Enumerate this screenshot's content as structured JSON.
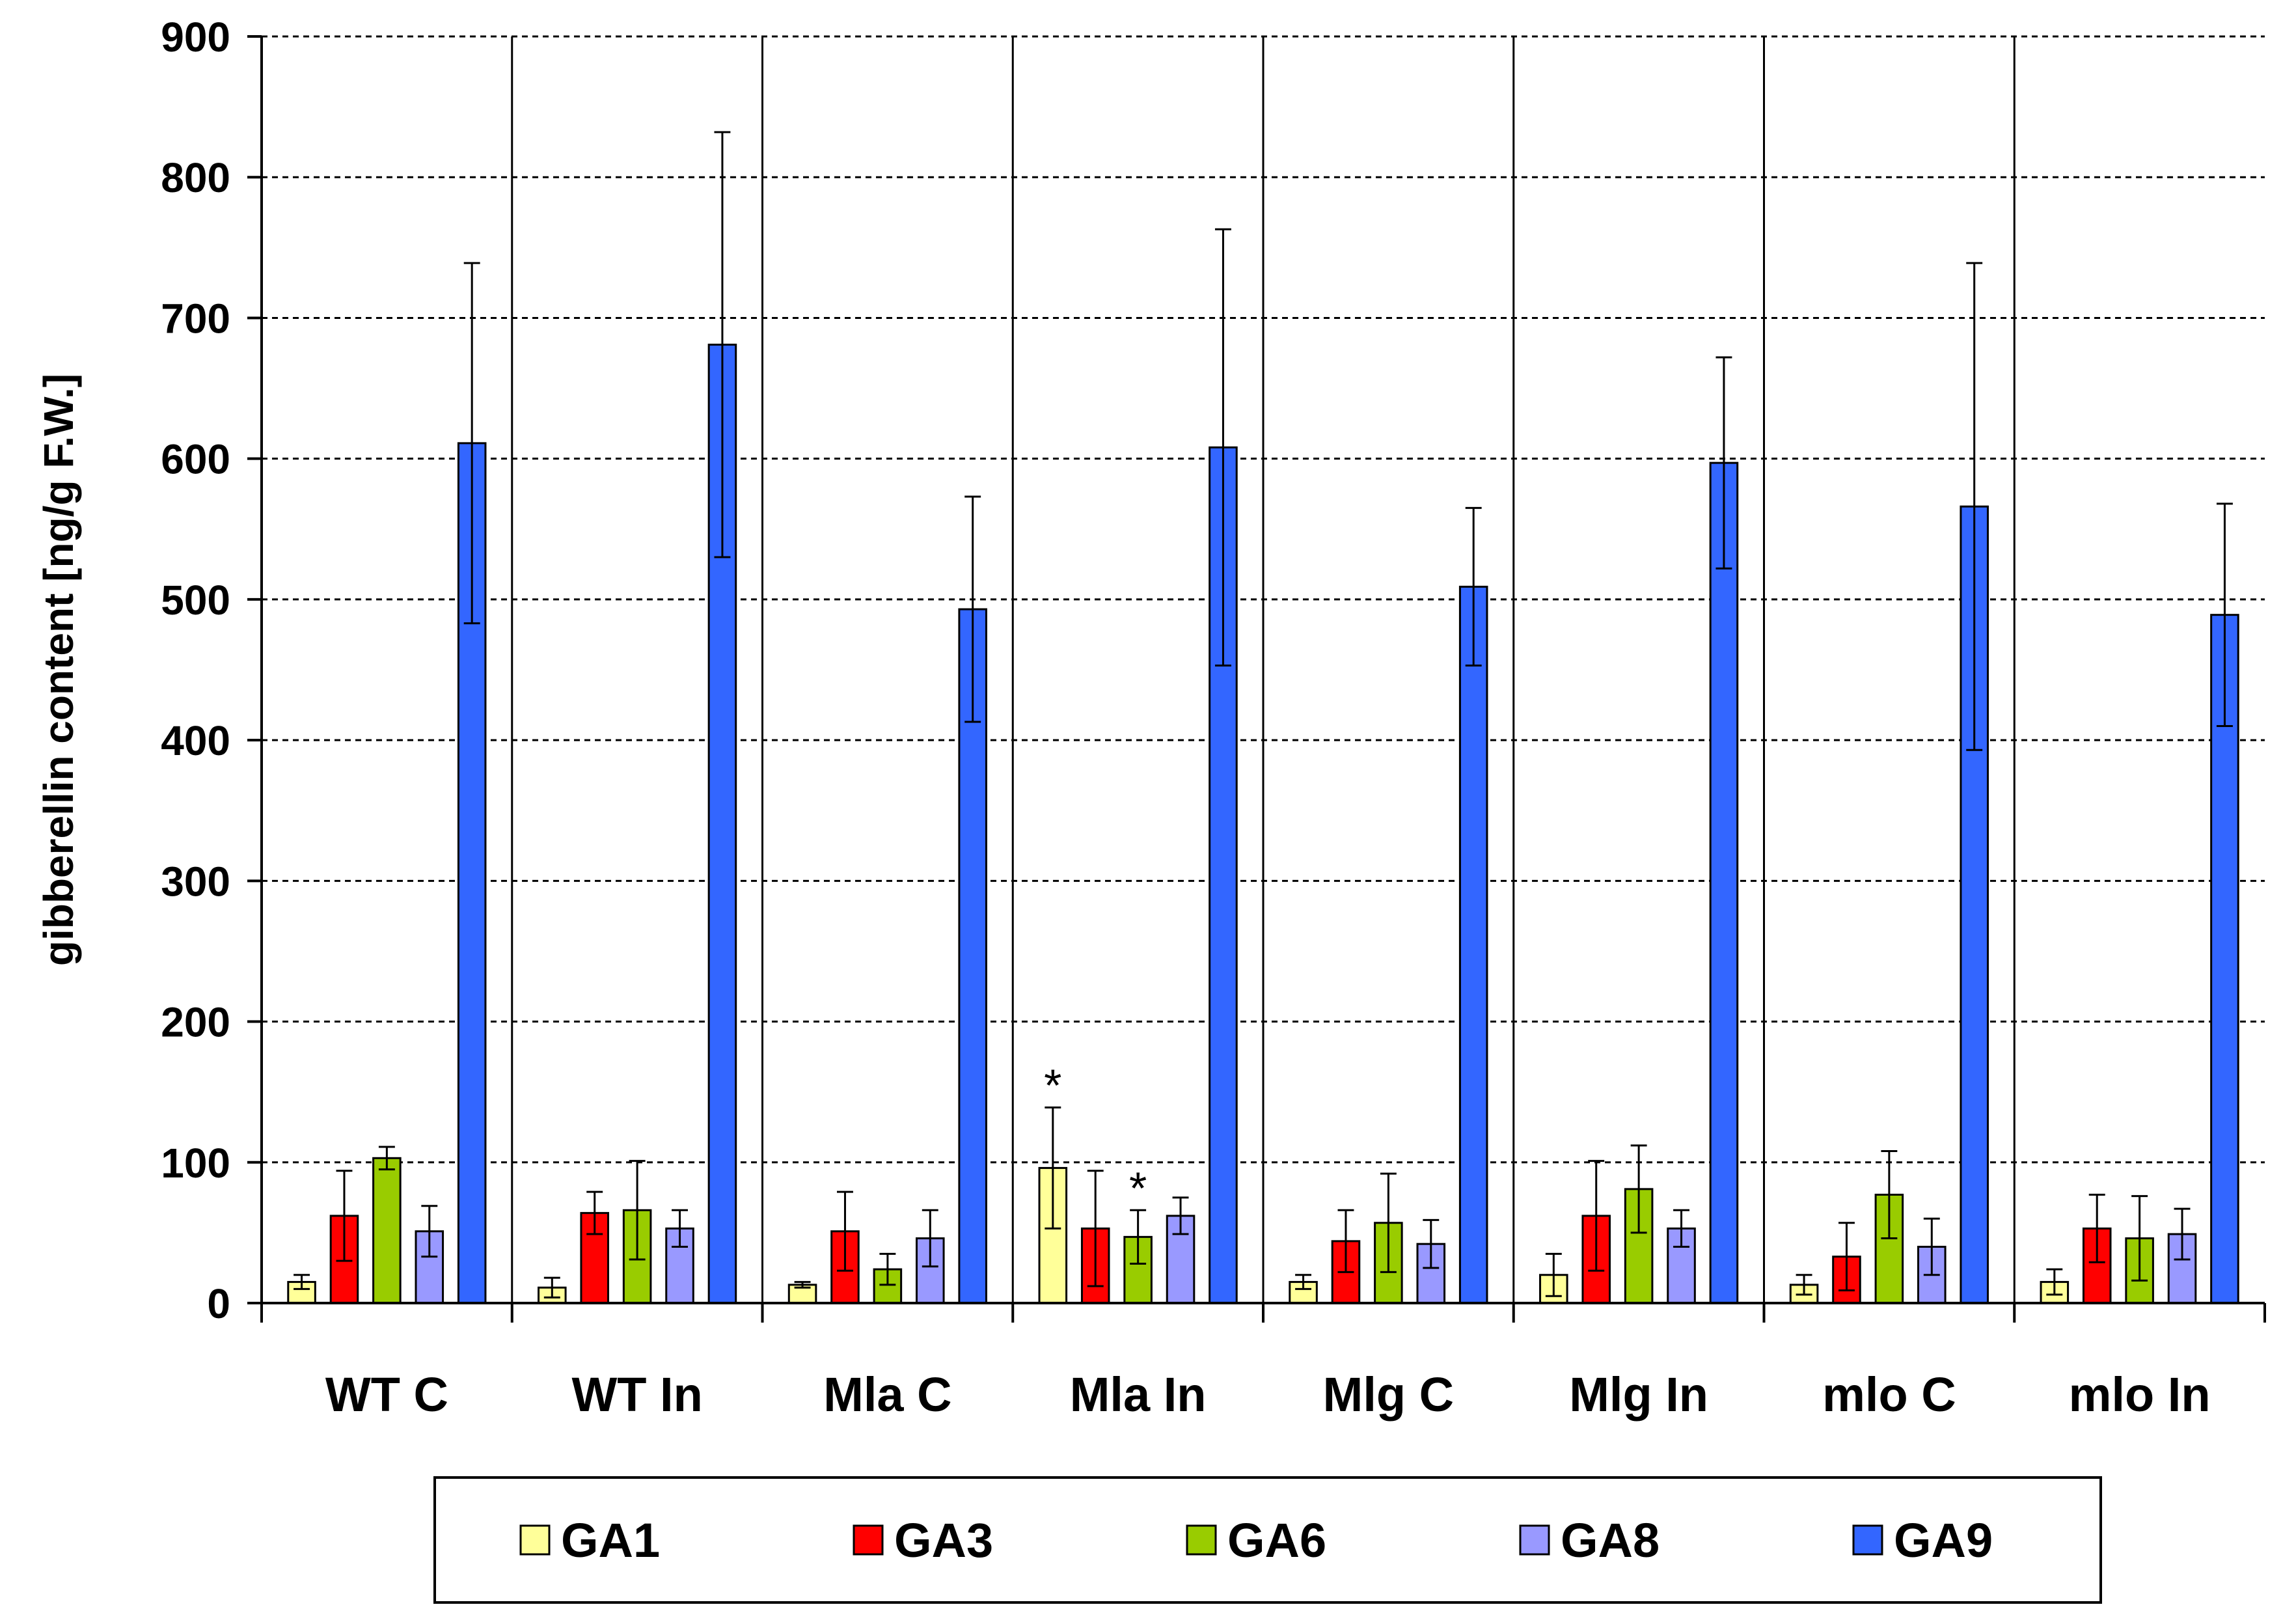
{
  "chart_data": {
    "type": "bar",
    "title": "",
    "xlabel": "",
    "ylabel": "gibberellin content [ng/g F.W.]",
    "ylim": [
      0,
      900
    ],
    "yticks": [
      0,
      100,
      200,
      300,
      400,
      500,
      600,
      700,
      800,
      900
    ],
    "grid": true,
    "legend_position": "bottom",
    "categories": [
      "WT C",
      "WT In",
      "Mla C",
      "Mla In",
      "Mlg C",
      "Mlg In",
      "mlo C",
      "mlo In"
    ],
    "series": [
      {
        "name": "GA1",
        "color": "#FFFF99",
        "values": [
          15,
          11,
          13,
          96,
          15,
          20,
          13,
          15
        ],
        "errors": [
          5,
          7,
          2,
          43,
          5,
          15,
          7,
          9
        ]
      },
      {
        "name": "GA3",
        "color": "#FF0000",
        "values": [
          62,
          64,
          51,
          53,
          44,
          62,
          33,
          53
        ],
        "errors": [
          32,
          15,
          28,
          41,
          22,
          39,
          24,
          24
        ]
      },
      {
        "name": "GA6",
        "color": "#99CC00",
        "values": [
          103,
          66,
          24,
          47,
          57,
          81,
          77,
          46
        ],
        "errors": [
          8,
          35,
          11,
          19,
          35,
          31,
          31,
          30
        ]
      },
      {
        "name": "GA8",
        "color": "#9999FF",
        "values": [
          51,
          53,
          46,
          62,
          42,
          53,
          40,
          49
        ],
        "errors": [
          18,
          13,
          20,
          13,
          17,
          13,
          20,
          18
        ]
      },
      {
        "name": "GA9",
        "color": "#3366FF",
        "values": [
          611,
          681,
          493,
          608,
          509,
          597,
          566,
          489
        ],
        "errors": [
          128,
          151,
          80,
          155,
          56,
          75,
          173,
          79
        ]
      }
    ],
    "annotations": [
      {
        "text": "*",
        "category": "Mla In",
        "series": "GA1"
      },
      {
        "text": "*",
        "category": "Mla In",
        "series": "GA6"
      }
    ]
  }
}
